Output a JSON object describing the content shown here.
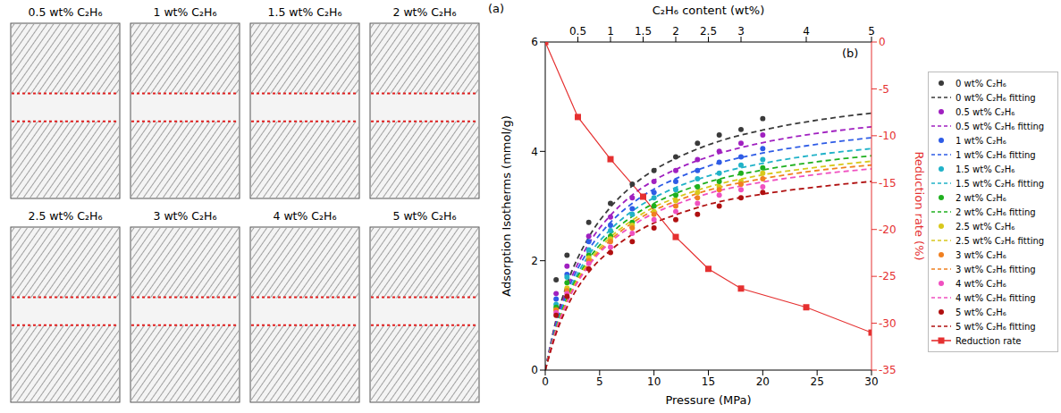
{
  "snapshots": {
    "panel_label": "(a)",
    "titles": [
      "0.5 wt% C₂H₆",
      "1 wt% C₂H₆",
      "1.5 wt% C₂H₆",
      "2 wt% C₂H₆",
      "2.5 wt% C₂H₆",
      "3 wt% C₂H₆",
      "4 wt% C₂H₆",
      "5 wt% C₂H₆"
    ]
  },
  "chart_data": {
    "type": "scatter",
    "panel_label": "(b)",
    "x_label": "Pressure (MPa)",
    "y_label": "Adsorption Isotherms (mmol/g)",
    "x2_label": "C₂H₆ content (wt%)",
    "y2_label": "Reduction rate (%)",
    "xlim": [
      0,
      30
    ],
    "xticks": [
      0,
      5,
      10,
      15,
      20,
      25,
      30
    ],
    "ylim": [
      0,
      6
    ],
    "yticks": [
      0,
      2,
      4,
      6
    ],
    "x2lim": [
      0,
      5
    ],
    "x2ticks": [
      0.5,
      1,
      1.5,
      2,
      2.5,
      3,
      4,
      5
    ],
    "y2lim": [
      -35,
      0
    ],
    "y2ticks": [
      0,
      -5,
      -10,
      -15,
      -20,
      -25,
      -30,
      -35
    ],
    "grid": false,
    "legend": "right",
    "series": [
      {
        "name": "0 wt% C₂H₆",
        "type": "scatter",
        "marker": "circle",
        "color": "#3a3a3a",
        "x": [
          1,
          2,
          4,
          6,
          8,
          10,
          12,
          14,
          16,
          18,
          20
        ],
        "values": [
          1.65,
          2.1,
          2.7,
          3.05,
          3.4,
          3.65,
          3.9,
          4.15,
          4.3,
          4.4,
          4.6
        ]
      },
      {
        "name": "0 wt% C₂H₆ fitting",
        "type": "line",
        "line_style": "dashed",
        "color": "#3a3a3a",
        "x": [
          0,
          1,
          2,
          4,
          6,
          8,
          10,
          12,
          15,
          20,
          25,
          30
        ],
        "values": [
          0,
          0.92,
          1.57,
          2.43,
          2.98,
          3.37,
          3.66,
          3.87,
          4.12,
          4.39,
          4.57,
          4.7
        ]
      },
      {
        "name": "0.5 wt% C₂H₆",
        "type": "scatter",
        "marker": "circle",
        "color": "#a020c0",
        "x": [
          1,
          2,
          4,
          6,
          8,
          10,
          12,
          14,
          16,
          18,
          20
        ],
        "values": [
          1.4,
          1.9,
          2.45,
          2.8,
          3.15,
          3.45,
          3.65,
          3.85,
          4.0,
          4.15,
          4.3
        ]
      },
      {
        "name": "0.5 wt% C₂H₆ fitting",
        "type": "line",
        "line_style": "dashed",
        "color": "#a020c0",
        "x": [
          0,
          1,
          2,
          4,
          6,
          8,
          10,
          12,
          15,
          20,
          25,
          30
        ],
        "values": [
          0,
          0.87,
          1.48,
          2.31,
          2.83,
          3.2,
          3.47,
          3.67,
          3.9,
          4.16,
          4.33,
          4.45
        ]
      },
      {
        "name": "1 wt% C₂H₆",
        "type": "scatter",
        "marker": "circle",
        "color": "#2e5ce6",
        "x": [
          1,
          2,
          4,
          6,
          8,
          10,
          12,
          14,
          16,
          18,
          20
        ],
        "values": [
          1.3,
          1.75,
          2.35,
          2.65,
          2.95,
          3.25,
          3.45,
          3.65,
          3.8,
          3.9,
          4.05
        ]
      },
      {
        "name": "1 wt% C₂H₆ fitting",
        "type": "line",
        "line_style": "dashed",
        "color": "#2e5ce6",
        "x": [
          0,
          1,
          2,
          4,
          6,
          8,
          10,
          12,
          15,
          20,
          25,
          30
        ],
        "values": [
          0,
          0.83,
          1.42,
          2.2,
          2.7,
          3.05,
          3.31,
          3.5,
          3.73,
          3.97,
          4.13,
          4.25
        ]
      },
      {
        "name": "1.5 wt% C₂H₆",
        "type": "scatter",
        "marker": "circle",
        "color": "#20b2c8",
        "x": [
          1,
          2,
          4,
          6,
          8,
          10,
          12,
          14,
          16,
          18,
          20
        ],
        "values": [
          1.2,
          1.7,
          2.2,
          2.55,
          2.85,
          3.15,
          3.3,
          3.5,
          3.6,
          3.75,
          3.85
        ]
      },
      {
        "name": "1.5 wt% C₂H₆ fitting",
        "type": "line",
        "line_style": "dashed",
        "color": "#20b2c8",
        "x": [
          0,
          1,
          2,
          4,
          6,
          8,
          10,
          12,
          15,
          20,
          25,
          30
        ],
        "values": [
          0,
          0.79,
          1.35,
          2.1,
          2.57,
          2.91,
          3.15,
          3.34,
          3.55,
          3.78,
          3.94,
          4.05
        ]
      },
      {
        "name": "2 wt% C₂H₆",
        "type": "scatter",
        "marker": "circle",
        "color": "#1fb01f",
        "x": [
          1,
          2,
          4,
          6,
          8,
          10,
          12,
          14,
          16,
          18,
          20
        ],
        "values": [
          1.15,
          1.6,
          2.1,
          2.45,
          2.7,
          3.0,
          3.2,
          3.35,
          3.45,
          3.6,
          3.7
        ]
      },
      {
        "name": "2 wt% C₂H₆ fitting",
        "type": "line",
        "line_style": "dashed",
        "color": "#1fb01f",
        "x": [
          0,
          1,
          2,
          4,
          6,
          8,
          10,
          12,
          15,
          20,
          25,
          30
        ],
        "values": [
          0,
          0.76,
          1.31,
          2.03,
          2.49,
          2.81,
          3.05,
          3.23,
          3.44,
          3.66,
          3.81,
          3.92
        ]
      },
      {
        "name": "2.5 wt% C₂H₆",
        "type": "scatter",
        "marker": "circle",
        "color": "#d8c81c",
        "x": [
          1,
          2,
          4,
          6,
          8,
          10,
          12,
          14,
          16,
          18,
          20
        ],
        "values": [
          1.1,
          1.5,
          2.05,
          2.4,
          2.65,
          2.9,
          3.1,
          3.25,
          3.35,
          3.45,
          3.6
        ]
      },
      {
        "name": "2.5 wt% C₂H₆ fitting",
        "type": "line",
        "line_style": "dashed",
        "color": "#d8c81c",
        "x": [
          0,
          1,
          2,
          4,
          6,
          8,
          10,
          12,
          15,
          20,
          25,
          30
        ],
        "values": [
          0,
          0.74,
          1.27,
          1.98,
          2.43,
          2.74,
          2.98,
          3.15,
          3.35,
          3.57,
          3.71,
          3.82
        ]
      },
      {
        "name": "3 wt% C₂H₆",
        "type": "scatter",
        "marker": "circle",
        "color": "#f08020",
        "x": [
          1,
          2,
          4,
          6,
          8,
          10,
          12,
          14,
          16,
          18,
          20
        ],
        "values": [
          1.1,
          1.45,
          2.0,
          2.35,
          2.6,
          2.85,
          3.0,
          3.15,
          3.3,
          3.4,
          3.5
        ]
      },
      {
        "name": "3 wt% C₂H₆ fitting",
        "type": "line",
        "line_style": "dashed",
        "color": "#f08020",
        "x": [
          0,
          1,
          2,
          4,
          6,
          8,
          10,
          12,
          15,
          20,
          25,
          30
        ],
        "values": [
          0,
          0.73,
          1.25,
          1.94,
          2.38,
          2.69,
          2.92,
          3.09,
          3.29,
          3.5,
          3.65,
          3.75
        ]
      },
      {
        "name": "4 wt% C₂H₆",
        "type": "scatter",
        "marker": "circle",
        "color": "#f050c0",
        "x": [
          1,
          2,
          4,
          6,
          8,
          10,
          12,
          14,
          16,
          18,
          20
        ],
        "values": [
          1.05,
          1.4,
          1.95,
          2.25,
          2.5,
          2.75,
          2.9,
          3.05,
          3.2,
          3.3,
          3.35
        ]
      },
      {
        "name": "4 wt% C₂H₆ fitting",
        "type": "line",
        "line_style": "dashed",
        "color": "#f050c0",
        "x": [
          0,
          1,
          2,
          4,
          6,
          8,
          10,
          12,
          15,
          20,
          25,
          30
        ],
        "values": [
          0,
          0.72,
          1.23,
          1.91,
          2.34,
          2.64,
          2.87,
          3.03,
          3.23,
          3.44,
          3.58,
          3.68
        ]
      },
      {
        "name": "5 wt% C₂H₆",
        "type": "scatter",
        "marker": "circle",
        "color": "#b01010",
        "x": [
          1,
          2,
          4,
          6,
          8,
          10,
          12,
          14,
          16,
          18,
          20
        ],
        "values": [
          1.0,
          1.35,
          1.85,
          2.15,
          2.35,
          2.6,
          2.75,
          2.85,
          3.0,
          3.15,
          3.25
        ]
      },
      {
        "name": "5 wt% C₂H₆ fitting",
        "type": "line",
        "line_style": "dashed",
        "color": "#b01010",
        "x": [
          0,
          1,
          2,
          4,
          6,
          8,
          10,
          12,
          15,
          20,
          25,
          30
        ],
        "values": [
          0,
          0.67,
          1.15,
          1.79,
          2.19,
          2.48,
          2.69,
          2.84,
          3.03,
          3.22,
          3.35,
          3.45
        ]
      },
      {
        "name": "Reduction rate",
        "type": "line",
        "marker": "square",
        "line_style": "solid",
        "axis": "y2",
        "color": "#e53030",
        "x": [
          0,
          0.5,
          1,
          1.5,
          2,
          2.5,
          3,
          4,
          5
        ],
        "values": [
          0,
          -8,
          -12.5,
          -16.5,
          -20.8,
          -24.2,
          -26.3,
          -28.3,
          -31
        ]
      }
    ]
  }
}
